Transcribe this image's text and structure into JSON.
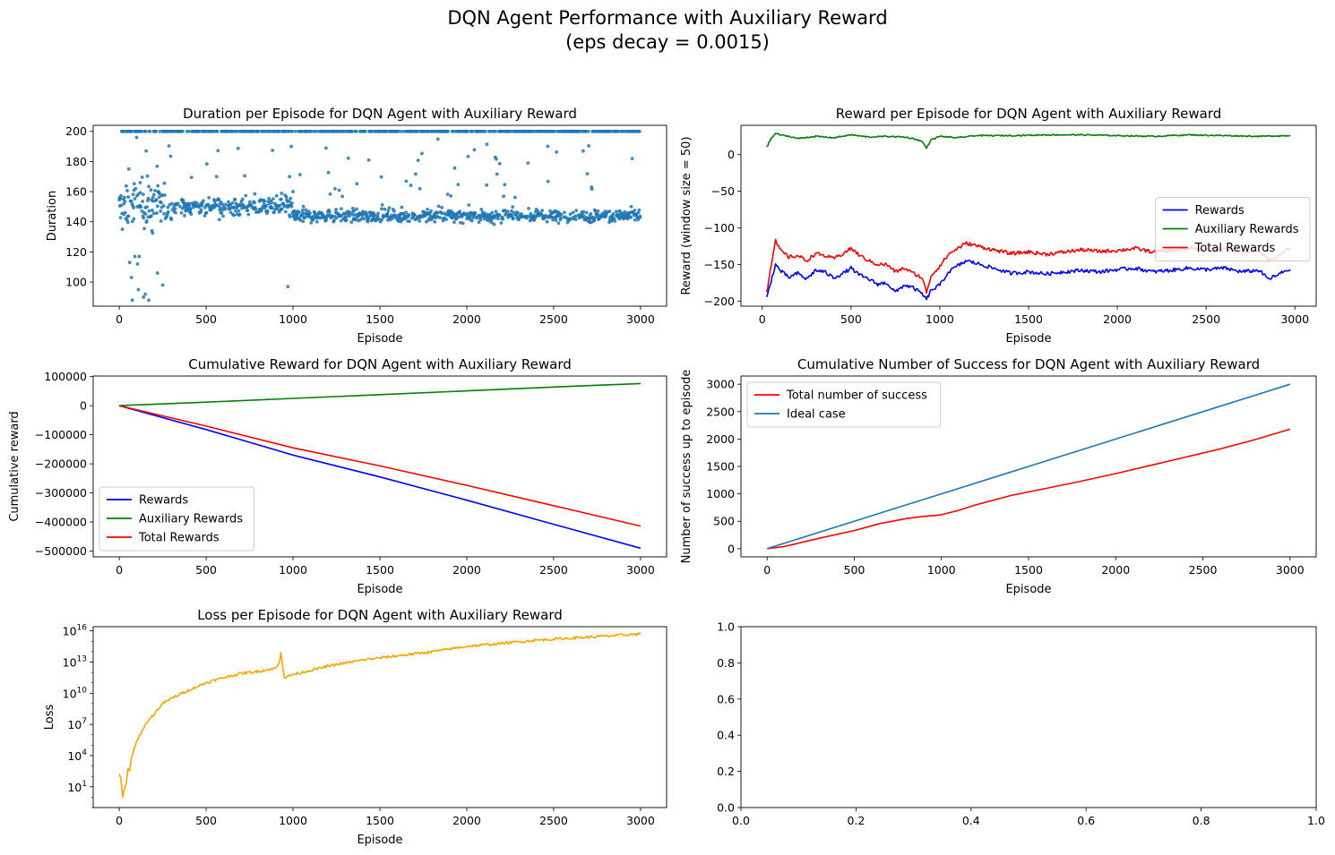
{
  "figure": {
    "suptitle_line1": "DQN Agent Performance with Auxiliary Reward",
    "suptitle_line2": "(eps decay = 0.0015)"
  },
  "chart_data": [
    {
      "id": "duration",
      "type": "scatter",
      "title": "Duration per Episode for DQN Agent with Auxiliary Reward",
      "xlabel": "Episode",
      "ylabel": "Duration",
      "xlim": [
        -150,
        3150
      ],
      "ylim": [
        84,
        204
      ],
      "xticks": [
        0,
        500,
        1000,
        1500,
        2000,
        2500,
        3000
      ],
      "yticks": [
        100,
        120,
        140,
        160,
        180,
        200
      ],
      "color": "#1f77b4",
      "n_points": 3000,
      "description_points": [
        {
          "x": 20,
          "y": 200
        },
        {
          "x": 45,
          "y": 141
        },
        {
          "x": 55,
          "y": 175
        },
        {
          "x": 60,
          "y": 113
        },
        {
          "x": 70,
          "y": 103
        },
        {
          "x": 75,
          "y": 88
        },
        {
          "x": 85,
          "y": 161
        },
        {
          "x": 90,
          "y": 117
        },
        {
          "x": 100,
          "y": 196
        },
        {
          "x": 105,
          "y": 112
        },
        {
          "x": 110,
          "y": 95
        },
        {
          "x": 115,
          "y": 117
        },
        {
          "x": 120,
          "y": 166
        },
        {
          "x": 140,
          "y": 90
        },
        {
          "x": 150,
          "y": 92
        },
        {
          "x": 155,
          "y": 187
        },
        {
          "x": 170,
          "y": 88
        },
        {
          "x": 200,
          "y": 158
        },
        {
          "x": 220,
          "y": 106
        },
        {
          "x": 250,
          "y": 98
        },
        {
          "x": 970,
          "y": 97
        },
        {
          "x": 980,
          "y": 170
        },
        {
          "x": 990,
          "y": 190
        },
        {
          "x": 1000,
          "y": 160
        }
      ],
      "notes": "Most episodes cluster between ~140 and ~160 with many episodes at the 200 cap; early episodes show scattered low durations."
    },
    {
      "id": "reward",
      "type": "line",
      "title": "Reward per Episode for DQN Agent with Auxiliary Reward",
      "xlabel": "Episode",
      "ylabel": "Reward (window size = 50)",
      "xlim": [
        -120,
        3120
      ],
      "ylim": [
        -207,
        40
      ],
      "xticks": [
        0,
        500,
        1000,
        1500,
        2000,
        2500,
        3000
      ],
      "yticks": [
        -200,
        -150,
        -100,
        -50,
        0
      ],
      "legend": "center-right",
      "series": [
        {
          "name": "Rewards",
          "color": "#0000ff",
          "x": [
            25,
            50,
            75,
            100,
            150,
            200,
            250,
            300,
            350,
            400,
            450,
            500,
            550,
            600,
            650,
            700,
            750,
            800,
            850,
            900,
            925,
            950,
            1000,
            1050,
            1100,
            1150,
            1200,
            1300,
            1400,
            1500,
            1600,
            1700,
            1800,
            1900,
            2000,
            2100,
            2200,
            2300,
            2400,
            2500,
            2600,
            2700,
            2800,
            2850,
            2900,
            2950,
            2975
          ],
          "y": [
            -196,
            -172,
            -150,
            -158,
            -168,
            -162,
            -170,
            -158,
            -160,
            -168,
            -163,
            -155,
            -165,
            -170,
            -177,
            -175,
            -188,
            -178,
            -182,
            -190,
            -198,
            -186,
            -178,
            -160,
            -152,
            -145,
            -148,
            -155,
            -162,
            -160,
            -163,
            -160,
            -158,
            -160,
            -157,
            -155,
            -160,
            -158,
            -155,
            -157,
            -155,
            -160,
            -158,
            -170,
            -165,
            -158,
            -157
          ]
        },
        {
          "name": "Auxiliary Rewards",
          "color": "#008000",
          "x": [
            25,
            50,
            75,
            100,
            150,
            200,
            300,
            400,
            500,
            600,
            700,
            800,
            850,
            900,
            925,
            950,
            1000,
            1100,
            1200,
            1400,
            1600,
            1800,
            2000,
            2200,
            2400,
            2600,
            2800,
            2975
          ],
          "y": [
            10,
            22,
            29,
            27,
            25,
            22,
            25,
            23,
            27,
            24,
            25,
            24,
            22,
            18,
            9,
            20,
            25,
            23,
            26,
            26,
            27,
            27,
            26,
            25,
            27,
            26,
            25,
            26
          ]
        },
        {
          "name": "Total Rewards",
          "color": "#ff0000",
          "x": [
            25,
            50,
            75,
            100,
            150,
            200,
            250,
            300,
            350,
            400,
            450,
            500,
            550,
            600,
            650,
            700,
            750,
            800,
            850,
            900,
            925,
            950,
            1000,
            1050,
            1100,
            1150,
            1200,
            1300,
            1400,
            1500,
            1600,
            1700,
            1800,
            1900,
            2000,
            2100,
            2200,
            2300,
            2400,
            2500,
            2600,
            2700,
            2800,
            2850,
            2900,
            2950,
            2975
          ],
          "y": [
            -188,
            -150,
            -118,
            -130,
            -140,
            -138,
            -145,
            -135,
            -138,
            -142,
            -136,
            -128,
            -138,
            -145,
            -150,
            -150,
            -160,
            -155,
            -162,
            -168,
            -188,
            -166,
            -152,
            -136,
            -128,
            -121,
            -124,
            -130,
            -135,
            -133,
            -136,
            -133,
            -130,
            -132,
            -131,
            -128,
            -133,
            -131,
            -128,
            -130,
            -128,
            -133,
            -132,
            -143,
            -140,
            -130,
            -130
          ]
        }
      ]
    },
    {
      "id": "cumulative_reward",
      "type": "line",
      "title": "Cumulative Reward for DQN Agent with Auxiliary Reward",
      "xlabel": "Episode",
      "ylabel": "Cumulative reward",
      "xlim": [
        -150,
        3150
      ],
      "ylim": [
        -520000,
        102000
      ],
      "xticks": [
        0,
        500,
        1000,
        1500,
        2000,
        2500,
        3000
      ],
      "yticks": [
        -500000,
        -400000,
        -300000,
        -200000,
        -100000,
        0,
        100000
      ],
      "yticklabels": [
        "−500000",
        "−400000",
        "−300000",
        "−200000",
        "−100000",
        "0",
        "100000"
      ],
      "legend": "lower-left",
      "series": [
        {
          "name": "Rewards",
          "color": "#0000ff",
          "x": [
            0,
            500,
            1000,
            1500,
            2000,
            2500,
            3000
          ],
          "y": [
            0,
            -82000,
            -170000,
            -245000,
            -325000,
            -408000,
            -490000
          ]
        },
        {
          "name": "Auxiliary Rewards",
          "color": "#008000",
          "x": [
            0,
            500,
            1000,
            1500,
            2000,
            2500,
            3000
          ],
          "y": [
            0,
            12000,
            25000,
            38000,
            51000,
            64000,
            76000
          ]
        },
        {
          "name": "Total Rewards",
          "color": "#ff0000",
          "x": [
            0,
            500,
            1000,
            1500,
            2000,
            2500,
            3000
          ],
          "y": [
            0,
            -70000,
            -145000,
            -207000,
            -274000,
            -344000,
            -414000
          ]
        }
      ]
    },
    {
      "id": "cumulative_success",
      "type": "line",
      "title": "Cumulative Number of Success for DQN Agent with Auxiliary Reward",
      "xlabel": "Episode",
      "ylabel": "Number of success up to episode",
      "xlim": [
        -150,
        3150
      ],
      "ylim": [
        -150,
        3150
      ],
      "xticks": [
        0,
        500,
        1000,
        1500,
        2000,
        2500,
        3000
      ],
      "yticks": [
        0,
        500,
        1000,
        1500,
        2000,
        2500,
        3000
      ],
      "legend": "top-left",
      "series": [
        {
          "name": "Total number of success",
          "color": "#ff0000",
          "x": [
            0,
            100,
            300,
            500,
            650,
            800,
            900,
            950,
            1000,
            1100,
            1200,
            1400,
            1600,
            1800,
            2000,
            2200,
            2400,
            2600,
            2800,
            3000
          ],
          "y": [
            0,
            40,
            190,
            330,
            460,
            550,
            590,
            600,
            620,
            700,
            800,
            970,
            1100,
            1230,
            1370,
            1520,
            1670,
            1820,
            1990,
            2180
          ]
        },
        {
          "name": "Ideal case",
          "color": "#1f77b4",
          "x": [
            0,
            3000
          ],
          "y": [
            0,
            3000
          ]
        }
      ]
    },
    {
      "id": "loss",
      "type": "line",
      "title": "Loss per Episode for DQN Agent with Auxiliary Reward",
      "xlabel": "Episode",
      "ylabel": "Loss",
      "yscale": "log",
      "xlim": [
        -150,
        3150
      ],
      "ylim_log10": [
        -1,
        16.4
      ],
      "xticks": [
        0,
        500,
        1000,
        1500,
        2000,
        2500,
        3000
      ],
      "yticks_log10": [
        1,
        4,
        7,
        10,
        13,
        16
      ],
      "color": "#ffa500",
      "series": [
        {
          "name": "",
          "color": "#ffa500",
          "x": [
            0,
            10,
            20,
            30,
            40,
            50,
            60,
            70,
            80,
            100,
            150,
            200,
            250,
            300,
            400,
            500,
            600,
            700,
            800,
            900,
            920,
            930,
            950,
            970,
            1000,
            1200,
            1400,
            1600,
            1800,
            2000,
            2200,
            2400,
            2600,
            2800,
            3000
          ],
          "log10y": [
            2.3,
            1.8,
            0,
            0.8,
            1.2,
            2.7,
            2.5,
            3.8,
            4.3,
            5.3,
            7,
            8,
            9,
            9.5,
            10.3,
            11,
            11.5,
            11.9,
            12.1,
            12.4,
            12.8,
            14,
            11.5,
            11.6,
            11.8,
            12.6,
            13.2,
            13.6,
            14,
            14.5,
            14.8,
            15.1,
            15.3,
            15.5,
            15.7
          ]
        }
      ]
    },
    {
      "id": "empty",
      "type": "line",
      "title": "",
      "xlabel": "",
      "ylabel": "",
      "xlim": [
        0,
        1
      ],
      "ylim": [
        0,
        1
      ],
      "xticks": [
        0,
        0.2,
        0.4,
        0.6,
        0.8,
        1
      ],
      "xticklabels": [
        "0.0",
        "0.2",
        "0.4",
        "0.6",
        "0.8",
        "1.0"
      ],
      "yticks": [
        0,
        0.2,
        0.4,
        0.6,
        0.8,
        1
      ],
      "yticklabels": [
        "0.0",
        "0.2",
        "0.4",
        "0.6",
        "0.8",
        "1.0"
      ],
      "series": []
    }
  ]
}
